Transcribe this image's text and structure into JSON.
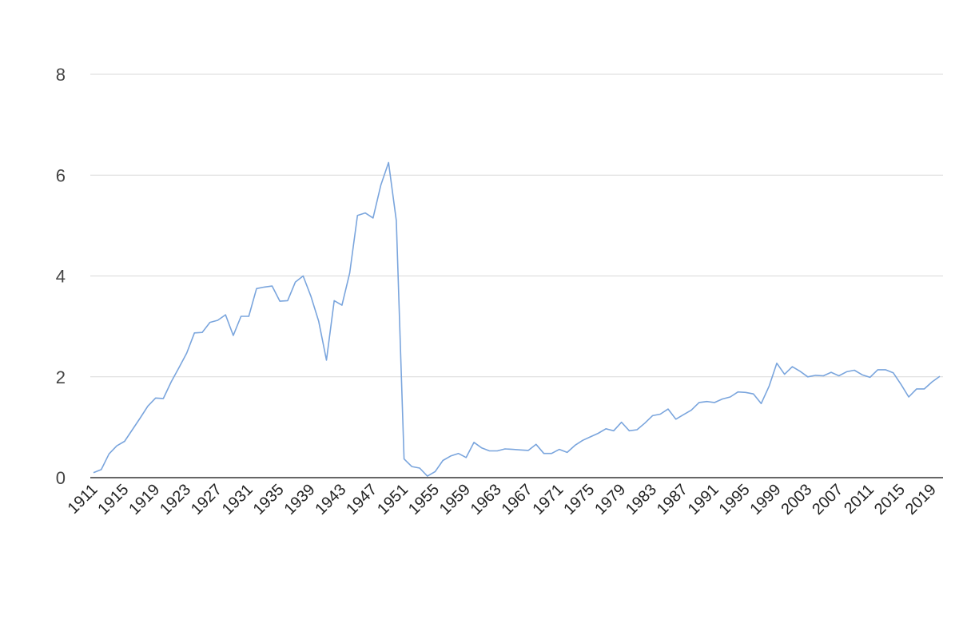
{
  "chart_data": {
    "type": "line",
    "title": "",
    "xlabel": "",
    "ylabel": "",
    "ylim": [
      0,
      8
    ],
    "yticks": [
      0,
      2,
      4,
      6,
      8
    ],
    "xlim": [
      1911,
      2020
    ],
    "xtick_labels": [
      "1911",
      "1915",
      "1919",
      "1923",
      "1927",
      "1931",
      "1935",
      "1939",
      "1943",
      "1947",
      "1951",
      "1955",
      "1959",
      "1963",
      "1967",
      "1971",
      "1975",
      "1979",
      "1983",
      "1987",
      "1991",
      "1995",
      "1999",
      "2003",
      "2007",
      "2011",
      "2015",
      "2019"
    ],
    "grid": true,
    "legend": "none",
    "line_color": "#7aa5dd",
    "x": [
      1911,
      1912,
      1913,
      1914,
      1915,
      1916,
      1917,
      1918,
      1919,
      1920,
      1921,
      1922,
      1923,
      1924,
      1925,
      1926,
      1927,
      1928,
      1929,
      1930,
      1931,
      1932,
      1933,
      1934,
      1935,
      1936,
      1937,
      1938,
      1939,
      1940,
      1941,
      1942,
      1943,
      1944,
      1945,
      1946,
      1947,
      1948,
      1949,
      1950,
      1951,
      1952,
      1953,
      1954,
      1955,
      1956,
      1957,
      1958,
      1959,
      1960,
      1961,
      1962,
      1963,
      1964,
      1965,
      1966,
      1967,
      1968,
      1969,
      1970,
      1971,
      1972,
      1973,
      1974,
      1975,
      1976,
      1977,
      1978,
      1979,
      1980,
      1981,
      1982,
      1983,
      1984,
      1985,
      1986,
      1987,
      1988,
      1989,
      1990,
      1991,
      1992,
      1993,
      1994,
      1995,
      1996,
      1997,
      1998,
      1999,
      2000,
      2001,
      2002,
      2003,
      2004,
      2005,
      2006,
      2007,
      2008,
      2009,
      2010,
      2011,
      2012,
      2013,
      2014,
      2015,
      2016,
      2017,
      2018,
      2019,
      2020
    ],
    "series": [
      {
        "values": [
          0.1,
          0.16,
          0.47,
          0.63,
          0.72,
          0.95,
          1.18,
          1.42,
          1.58,
          1.57,
          1.9,
          2.18,
          2.47,
          2.87,
          2.88,
          3.08,
          3.12,
          3.23,
          2.82,
          3.2,
          3.2,
          3.75,
          3.78,
          3.8,
          3.5,
          3.51,
          3.88,
          4.0,
          3.6,
          3.1,
          2.33,
          3.51,
          3.42,
          4.06,
          5.2,
          5.25,
          5.15,
          5.8,
          6.25,
          5.1,
          0.37,
          0.22,
          0.19,
          0.03,
          0.12,
          0.34,
          0.43,
          0.48,
          0.4,
          0.7,
          0.59,
          0.53,
          0.53,
          0.57,
          0.56,
          0.55,
          0.54,
          0.66,
          0.48,
          0.48,
          0.56,
          0.5,
          0.64,
          0.74,
          0.81,
          0.88,
          0.97,
          0.93,
          1.1,
          0.93,
          0.95,
          1.08,
          1.23,
          1.26,
          1.36,
          1.16,
          1.25,
          1.34,
          1.49,
          1.51,
          1.49,
          1.56,
          1.6,
          1.7,
          1.69,
          1.66,
          1.47,
          1.81,
          2.27,
          2.05,
          2.2,
          2.11,
          2.0,
          2.03,
          2.02,
          2.09,
          2.02,
          2.1,
          2.13,
          2.04,
          1.99,
          2.14,
          2.14,
          2.08,
          1.85,
          1.6,
          1.76,
          1.76,
          1.9,
          2.01
        ]
      }
    ]
  }
}
